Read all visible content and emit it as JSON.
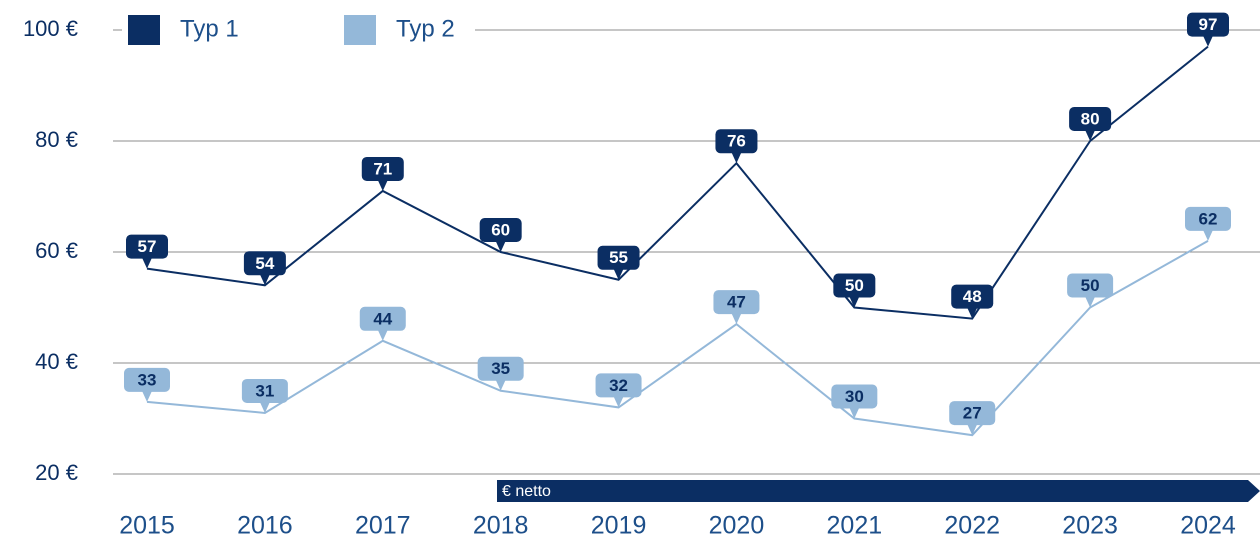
{
  "chart_data": {
    "type": "line",
    "categories": [
      "2015",
      "2016",
      "2017",
      "2018",
      "2019",
      "2020",
      "2021",
      "2022",
      "2023",
      "2024"
    ],
    "series": [
      {
        "name": "Typ 1",
        "color": "#0b2e63",
        "values": [
          57,
          54,
          71,
          60,
          55,
          76,
          50,
          48,
          80,
          97
        ]
      },
      {
        "name": "Typ 2",
        "color": "#94b8d9",
        "values": [
          33,
          31,
          44,
          35,
          32,
          47,
          30,
          27,
          50,
          62
        ]
      }
    ],
    "ylim": [
      20,
      100
    ],
    "yticks": [
      {
        "value": 20,
        "label": "20 €"
      },
      {
        "value": 40,
        "label": "40 €"
      },
      {
        "value": 60,
        "label": "60 €"
      },
      {
        "value": 80,
        "label": "80 €"
      },
      {
        "value": 100,
        "label": "100 €"
      }
    ],
    "grid": true,
    "legend": "top-left",
    "annotation": "€ netto"
  }
}
